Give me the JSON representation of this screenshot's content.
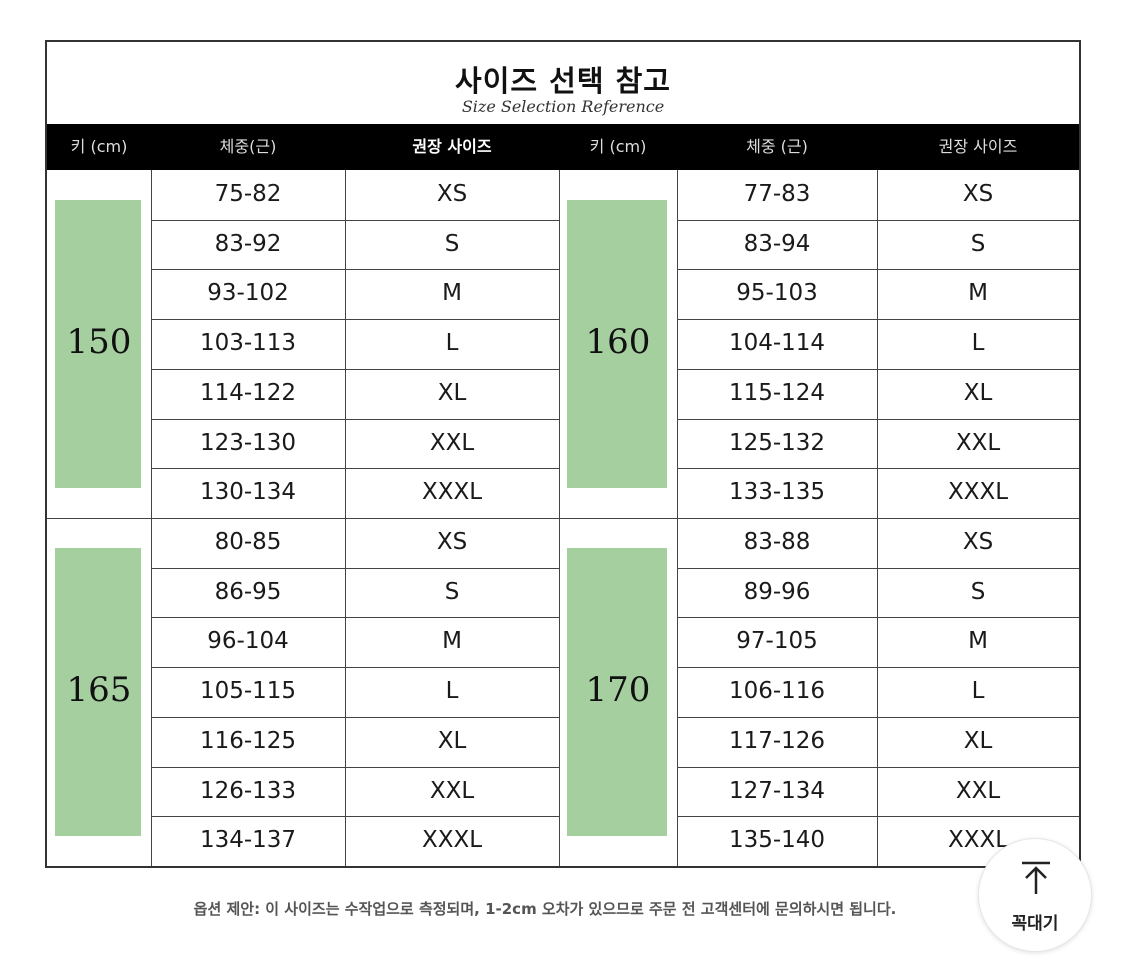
{
  "title": "사이즈 선택 참고",
  "subtitle": "Size Selection Reference",
  "headers": [
    "키 (cm)",
    "체중(근)",
    "권장 사이즈",
    "키 (cm)",
    "체중 (근)",
    "권장 사이즈"
  ],
  "sizes": [
    "XS",
    "S",
    "M",
    "L",
    "XL",
    "XXL",
    "XXXL"
  ],
  "groups": [
    {
      "height": "150",
      "weights": [
        "75-82",
        "83-92",
        "93-102",
        "103-113",
        "114-122",
        "123-130",
        "130-134"
      ]
    },
    {
      "height": "160",
      "weights": [
        "77-83",
        "83-94",
        "95-103",
        "104-114",
        "115-124",
        "125-132",
        "133-135"
      ]
    },
    {
      "height": "165",
      "weights": [
        "80-85",
        "86-95",
        "96-104",
        "105-115",
        "116-125",
        "126-133",
        "134-137"
      ]
    },
    {
      "height": "170",
      "weights": [
        "83-88",
        "89-96",
        "97-105",
        "106-116",
        "117-126",
        "127-134",
        "135-140"
      ]
    }
  ],
  "note": "옵션 제안: 이 사이즈는 수작업으로 측정되며, 1-2cm 오차가 있으므로 주문 전 고객센터에 문의하시면 됩니다.",
  "top_button": {
    "label": "꼭대기",
    "icon": "arrow-up-to-top-icon"
  },
  "colors": {
    "header_bg": "#000000",
    "height_block": "#a5cf9f",
    "border": "#333333"
  }
}
